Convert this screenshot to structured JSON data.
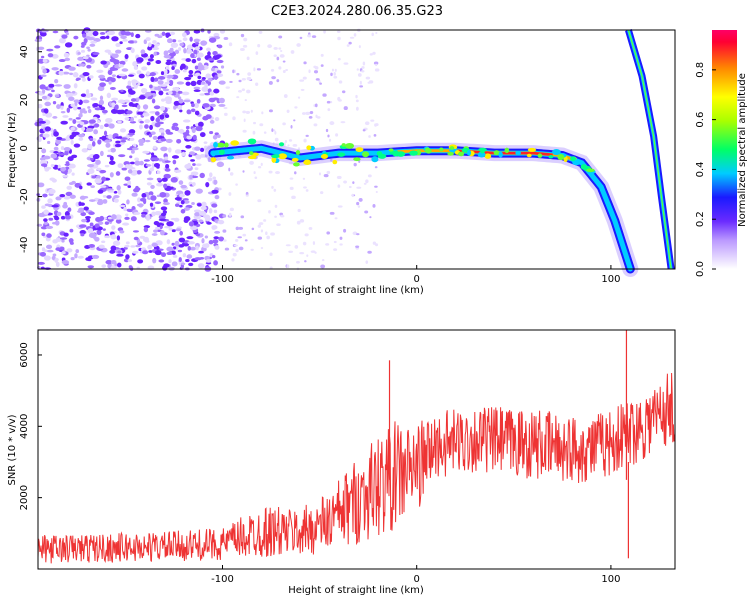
{
  "title": "C2E3.2024.280.06.35.G23",
  "chart_data": [
    {
      "type": "heatmap",
      "xlabel": "Height of straight line (km)",
      "ylabel": "Frequency (Hz)",
      "xlim": [
        -195,
        133
      ],
      "ylim": [
        -50,
        49
      ],
      "xticks": [
        -100,
        0,
        100
      ],
      "yticks": [
        40,
        20,
        0,
        -20,
        -40
      ],
      "colorbar": {
        "label": "Normalized spectral amplitude",
        "range": [
          0,
          0.96
        ],
        "ticks": [
          0.0,
          0.2,
          0.4,
          0.6,
          0.8
        ]
      },
      "ridge": [
        {
          "x": -105,
          "y": -2
        },
        {
          "x": -80,
          "y": 0
        },
        {
          "x": -60,
          "y": -4
        },
        {
          "x": -40,
          "y": -2
        },
        {
          "x": -20,
          "y": -2
        },
        {
          "x": 0,
          "y": -1
        },
        {
          "x": 20,
          "y": -1
        },
        {
          "x": 40,
          "y": -2
        },
        {
          "x": 60,
          "y": -2
        },
        {
          "x": 75,
          "y": -3
        },
        {
          "x": 85,
          "y": -6
        },
        {
          "x": 95,
          "y": -16
        },
        {
          "x": 102,
          "y": -30
        },
        {
          "x": 110,
          "y": -50
        }
      ],
      "second_ridge": [
        {
          "x": 109,
          "y": 49
        },
        {
          "x": 116,
          "y": 30
        },
        {
          "x": 122,
          "y": 5
        },
        {
          "x": 126,
          "y": -20
        },
        {
          "x": 131,
          "y": -50
        }
      ]
    },
    {
      "type": "line",
      "xlabel": "Height of straight line (km)",
      "ylabel": "SNR (10 * v/v)",
      "xlim": [
        -195,
        133
      ],
      "ylim": [
        0,
        6700
      ],
      "xticks": [
        -100,
        0,
        100
      ],
      "yticks": [
        2000,
        4000,
        6000
      ],
      "color": "#ee3333",
      "envelope": [
        {
          "x": -195,
          "lo": 150,
          "hi": 950
        },
        {
          "x": -130,
          "lo": 200,
          "hi": 1050
        },
        {
          "x": -100,
          "lo": 250,
          "hi": 1150
        },
        {
          "x": -80,
          "lo": 300,
          "hi": 1800
        },
        {
          "x": -60,
          "lo": 350,
          "hi": 1700
        },
        {
          "x": -45,
          "lo": 450,
          "hi": 2200
        },
        {
          "x": -30,
          "lo": 700,
          "hi": 3200
        },
        {
          "x": -20,
          "lo": 900,
          "hi": 3800
        },
        {
          "x": -10,
          "lo": 1100,
          "hi": 4200
        },
        {
          "x": 0,
          "lo": 1600,
          "hi": 4100
        },
        {
          "x": 10,
          "lo": 2500,
          "hi": 4400
        },
        {
          "x": 30,
          "lo": 2700,
          "hi": 4600
        },
        {
          "x": 60,
          "lo": 2500,
          "hi": 4500
        },
        {
          "x": 85,
          "lo": 2400,
          "hi": 4300
        },
        {
          "x": 100,
          "lo": 2600,
          "hi": 4500
        },
        {
          "x": 115,
          "lo": 3000,
          "hi": 5000
        },
        {
          "x": 133,
          "lo": 3500,
          "hi": 5700
        }
      ],
      "spikes": [
        {
          "x": -14,
          "y": 5850
        },
        {
          "x": 108,
          "y": 6700
        },
        {
          "x": 109,
          "y": 300
        }
      ]
    }
  ]
}
